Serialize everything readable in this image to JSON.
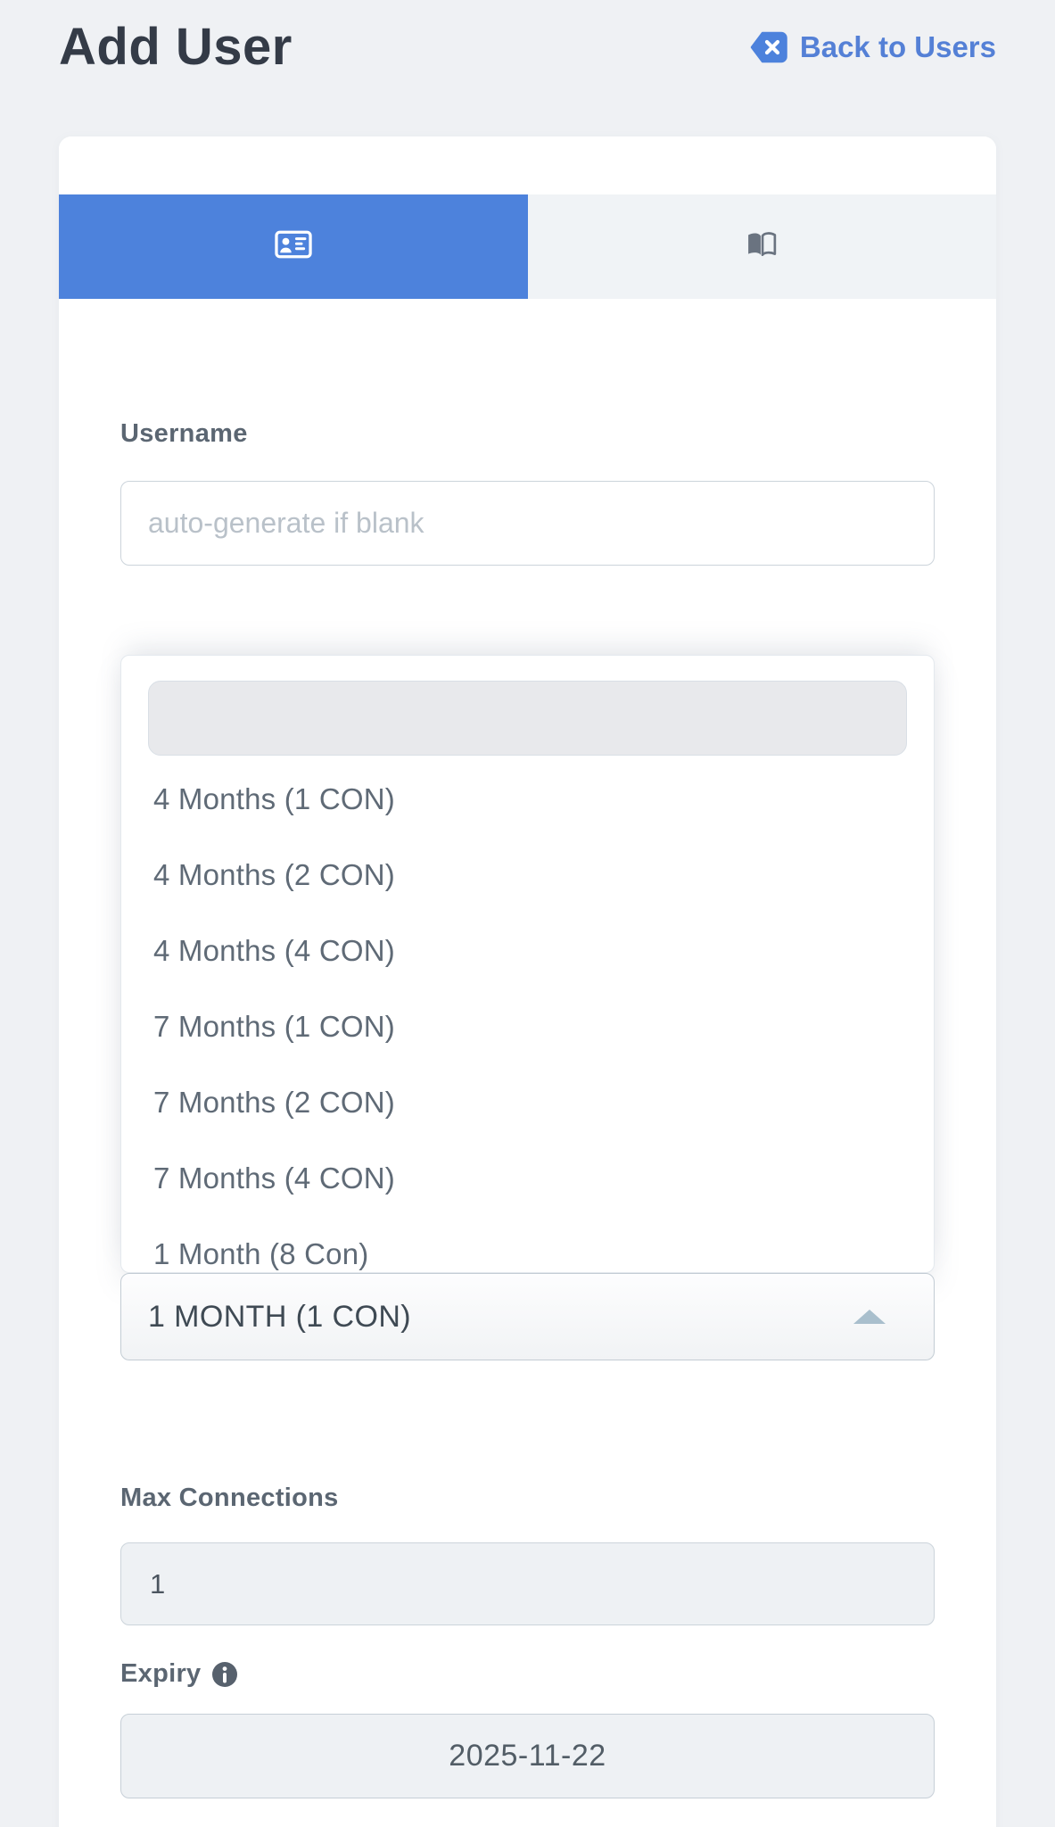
{
  "colors": {
    "page_bg": "#eff1f4",
    "card_bg": "#ffffff",
    "accent_blue": "#4d82dc",
    "link_blue": "#5480d6",
    "tab_inactive_bg": "#f0f3f6",
    "tab_icon_gray": "#6a7380",
    "title_text": "#343b47",
    "label_text": "#5b6672",
    "item_text": "#5f6a76",
    "select_text": "#3f4a54",
    "placeholder_text": "#b9c1c9",
    "input_border": "#ccd4db",
    "readonly_bg": "#eef1f4",
    "search_bg": "#e8e9ec",
    "caret_color": "#a9bfcd"
  },
  "header": {
    "title": "Add User",
    "back_label": "Back to Users"
  },
  "tabs": [
    {
      "icon": "id-card-icon",
      "active": true
    },
    {
      "icon": "book-icon",
      "active": false
    }
  ],
  "form": {
    "username": {
      "label": "Username",
      "placeholder": "auto-generate if blank",
      "value": ""
    },
    "package": {
      "selected": "1 MONTH (1 CON)",
      "search_value": "",
      "options": [
        "4 Months (1 CON)",
        "4 Months (2 CON)",
        "4 Months (4 CON)",
        "7 Months (1 CON)",
        "7 Months (2 CON)",
        "7 Months (4 CON)",
        "1 Month (8 Con)"
      ]
    },
    "max_connections": {
      "label": "Max Connections",
      "value": "1"
    },
    "expiry": {
      "label": "Expiry",
      "value": "2025-11-22"
    }
  }
}
